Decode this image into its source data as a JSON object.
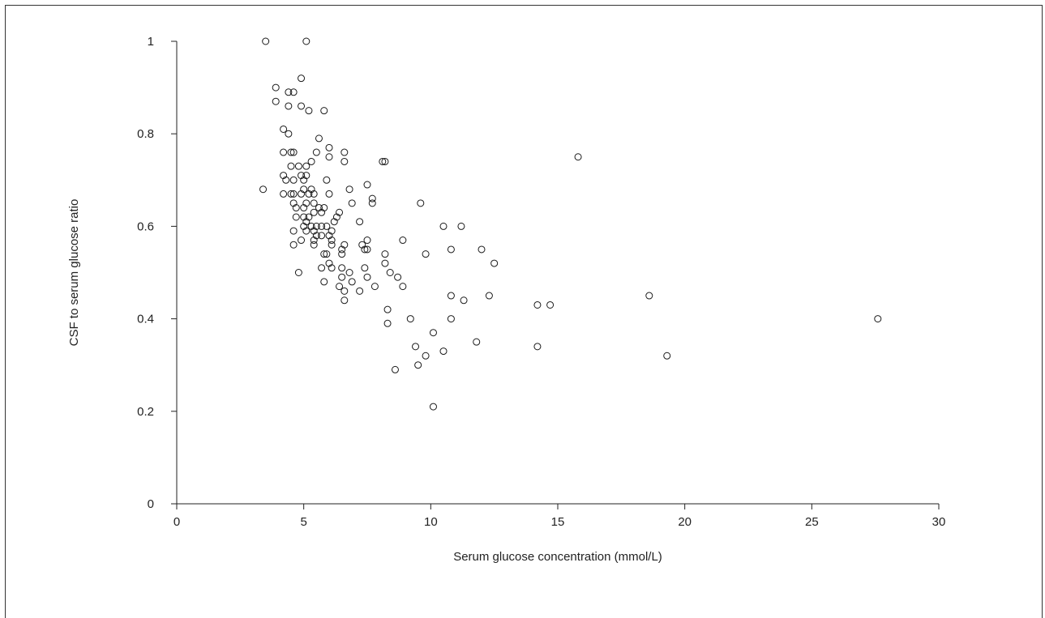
{
  "chart_data": {
    "type": "scatter",
    "title": "",
    "xlabel": "Serum glucose concentration (mmol/L)",
    "ylabel": "CSF to serum glucose ratio",
    "xlim": [
      0,
      30
    ],
    "ylim": [
      0,
      1
    ],
    "xticks": [
      0,
      5,
      10,
      15,
      20,
      25,
      30
    ],
    "yticks": [
      0,
      0.2,
      0.4,
      0.6,
      0.8,
      1
    ],
    "ytick_labels": [
      "0",
      "0.2",
      "0.4",
      "0.6",
      "0.8",
      "1"
    ],
    "grid": false,
    "marker": "open-circle",
    "marker_color": "#1a1a1a",
    "points": [
      [
        3.5,
        1.0
      ],
      [
        5.1,
        1.0
      ],
      [
        4.9,
        0.92
      ],
      [
        3.9,
        0.9
      ],
      [
        3.9,
        0.87
      ],
      [
        4.4,
        0.89
      ],
      [
        4.6,
        0.89
      ],
      [
        4.4,
        0.86
      ],
      [
        4.9,
        0.86
      ],
      [
        5.8,
        0.85
      ],
      [
        5.2,
        0.85
      ],
      [
        4.2,
        0.81
      ],
      [
        4.4,
        0.8
      ],
      [
        5.6,
        0.79
      ],
      [
        4.2,
        0.76
      ],
      [
        4.5,
        0.76
      ],
      [
        4.6,
        0.76
      ],
      [
        6.0,
        0.77
      ],
      [
        6.6,
        0.76
      ],
      [
        5.5,
        0.76
      ],
      [
        6.0,
        0.75
      ],
      [
        6.6,
        0.74
      ],
      [
        5.3,
        0.74
      ],
      [
        8.1,
        0.74
      ],
      [
        8.2,
        0.74
      ],
      [
        4.5,
        0.73
      ],
      [
        4.8,
        0.73
      ],
      [
        5.1,
        0.73
      ],
      [
        4.2,
        0.71
      ],
      [
        4.9,
        0.71
      ],
      [
        5.1,
        0.71
      ],
      [
        5.9,
        0.7
      ],
      [
        4.6,
        0.7
      ],
      [
        4.3,
        0.7
      ],
      [
        5.0,
        0.7
      ],
      [
        7.5,
        0.69
      ],
      [
        3.4,
        0.68
      ],
      [
        5.0,
        0.68
      ],
      [
        5.3,
        0.68
      ],
      [
        6.8,
        0.68
      ],
      [
        4.2,
        0.67
      ],
      [
        4.5,
        0.67
      ],
      [
        4.6,
        0.67
      ],
      [
        4.9,
        0.67
      ],
      [
        5.2,
        0.67
      ],
      [
        5.4,
        0.67
      ],
      [
        6.0,
        0.67
      ],
      [
        7.7,
        0.66
      ],
      [
        4.6,
        0.65
      ],
      [
        5.1,
        0.65
      ],
      [
        5.4,
        0.65
      ],
      [
        6.9,
        0.65
      ],
      [
        7.7,
        0.65
      ],
      [
        9.6,
        0.65
      ],
      [
        4.7,
        0.64
      ],
      [
        5.0,
        0.64
      ],
      [
        5.6,
        0.64
      ],
      [
        5.8,
        0.64
      ],
      [
        5.4,
        0.63
      ],
      [
        6.4,
        0.63
      ],
      [
        5.7,
        0.63
      ],
      [
        4.7,
        0.62
      ],
      [
        5.0,
        0.62
      ],
      [
        5.2,
        0.62
      ],
      [
        6.3,
        0.62
      ],
      [
        6.2,
        0.61
      ],
      [
        7.2,
        0.61
      ],
      [
        5.1,
        0.61
      ],
      [
        5.0,
        0.6
      ],
      [
        5.3,
        0.6
      ],
      [
        5.5,
        0.6
      ],
      [
        5.7,
        0.6
      ],
      [
        5.9,
        0.6
      ],
      [
        10.5,
        0.6
      ],
      [
        11.2,
        0.6
      ],
      [
        4.6,
        0.59
      ],
      [
        5.1,
        0.59
      ],
      [
        5.4,
        0.59
      ],
      [
        6.1,
        0.59
      ],
      [
        5.5,
        0.58
      ],
      [
        5.7,
        0.58
      ],
      [
        6.0,
        0.58
      ],
      [
        4.9,
        0.57
      ],
      [
        5.4,
        0.57
      ],
      [
        6.1,
        0.57
      ],
      [
        7.5,
        0.57
      ],
      [
        8.9,
        0.57
      ],
      [
        4.6,
        0.56
      ],
      [
        5.4,
        0.56
      ],
      [
        6.1,
        0.56
      ],
      [
        6.6,
        0.56
      ],
      [
        7.3,
        0.56
      ],
      [
        7.4,
        0.55
      ],
      [
        7.5,
        0.55
      ],
      [
        10.8,
        0.55
      ],
      [
        12.0,
        0.55
      ],
      [
        6.5,
        0.55
      ],
      [
        5.8,
        0.54
      ],
      [
        5.9,
        0.54
      ],
      [
        6.5,
        0.54
      ],
      [
        8.2,
        0.54
      ],
      [
        9.8,
        0.54
      ],
      [
        5.7,
        0.51
      ],
      [
        6.0,
        0.52
      ],
      [
        6.1,
        0.51
      ],
      [
        6.5,
        0.51
      ],
      [
        7.4,
        0.51
      ],
      [
        8.2,
        0.52
      ],
      [
        12.5,
        0.52
      ],
      [
        4.8,
        0.5
      ],
      [
        6.8,
        0.5
      ],
      [
        8.4,
        0.5
      ],
      [
        6.5,
        0.49
      ],
      [
        7.5,
        0.49
      ],
      [
        8.7,
        0.49
      ],
      [
        5.8,
        0.48
      ],
      [
        6.9,
        0.48
      ],
      [
        6.4,
        0.47
      ],
      [
        7.8,
        0.47
      ],
      [
        8.9,
        0.47
      ],
      [
        6.6,
        0.46
      ],
      [
        7.2,
        0.46
      ],
      [
        6.6,
        0.44
      ],
      [
        11.3,
        0.44
      ],
      [
        10.8,
        0.45
      ],
      [
        12.3,
        0.45
      ],
      [
        18.6,
        0.45
      ],
      [
        14.2,
        0.43
      ],
      [
        14.7,
        0.43
      ],
      [
        8.3,
        0.42
      ],
      [
        15.8,
        0.75
      ],
      [
        8.3,
        0.39
      ],
      [
        9.2,
        0.4
      ],
      [
        10.8,
        0.4
      ],
      [
        27.6,
        0.4
      ],
      [
        10.1,
        0.37
      ],
      [
        11.8,
        0.35
      ],
      [
        9.4,
        0.34
      ],
      [
        14.2,
        0.34
      ],
      [
        10.5,
        0.33
      ],
      [
        9.8,
        0.32
      ],
      [
        19.3,
        0.32
      ],
      [
        9.5,
        0.3
      ],
      [
        8.6,
        0.29
      ],
      [
        10.1,
        0.21
      ]
    ]
  }
}
